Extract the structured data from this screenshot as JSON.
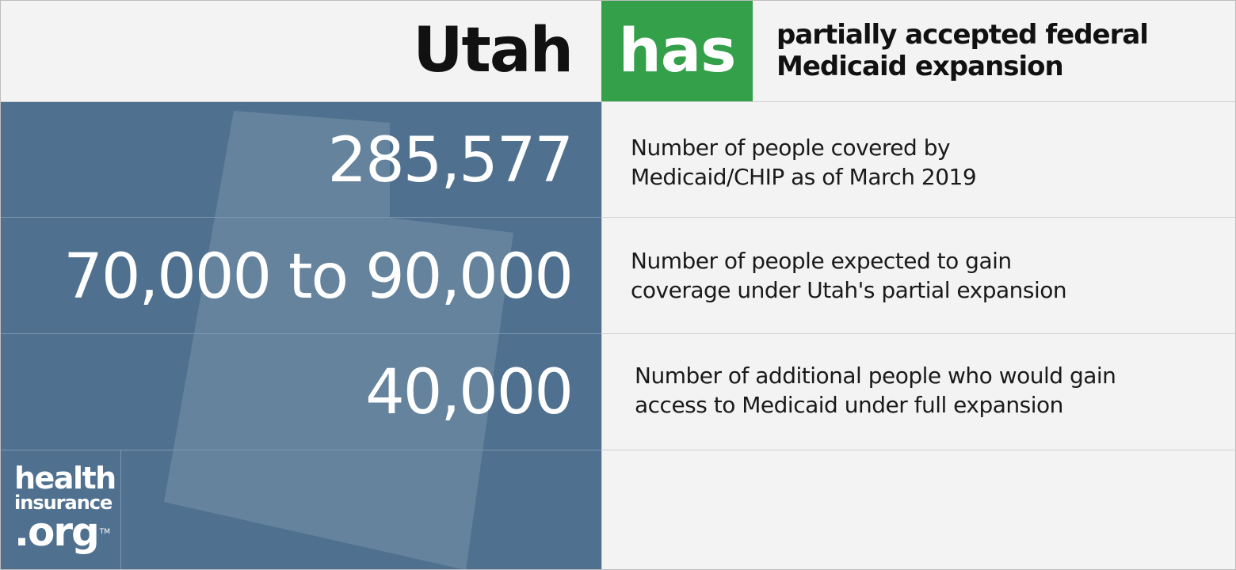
{
  "header": {
    "state": "Utah",
    "verb": "has",
    "status_line1": "partially accepted federal",
    "status_line2": "Medicaid expansion"
  },
  "colors": {
    "blue_panel": "#4f718f",
    "green_badge": "#34a04a",
    "background": "#f3f3f3"
  },
  "stats": [
    {
      "value": "285,577",
      "desc_line1": "Number of people covered by",
      "desc_line2": "Medicaid/CHIP as of March 2019"
    },
    {
      "value": "70,000 to 90,000",
      "desc_line1": "Number of people expected to gain",
      "desc_line2": "coverage under Utah's partial expansion"
    },
    {
      "value": "40,000",
      "desc_line1": "Number of additional people who would gain",
      "desc_line2": "access to Medicaid under full expansion"
    }
  ],
  "logo": {
    "line1": "health",
    "line2": "insurance",
    "line3": ".org",
    "tm": "TM"
  }
}
